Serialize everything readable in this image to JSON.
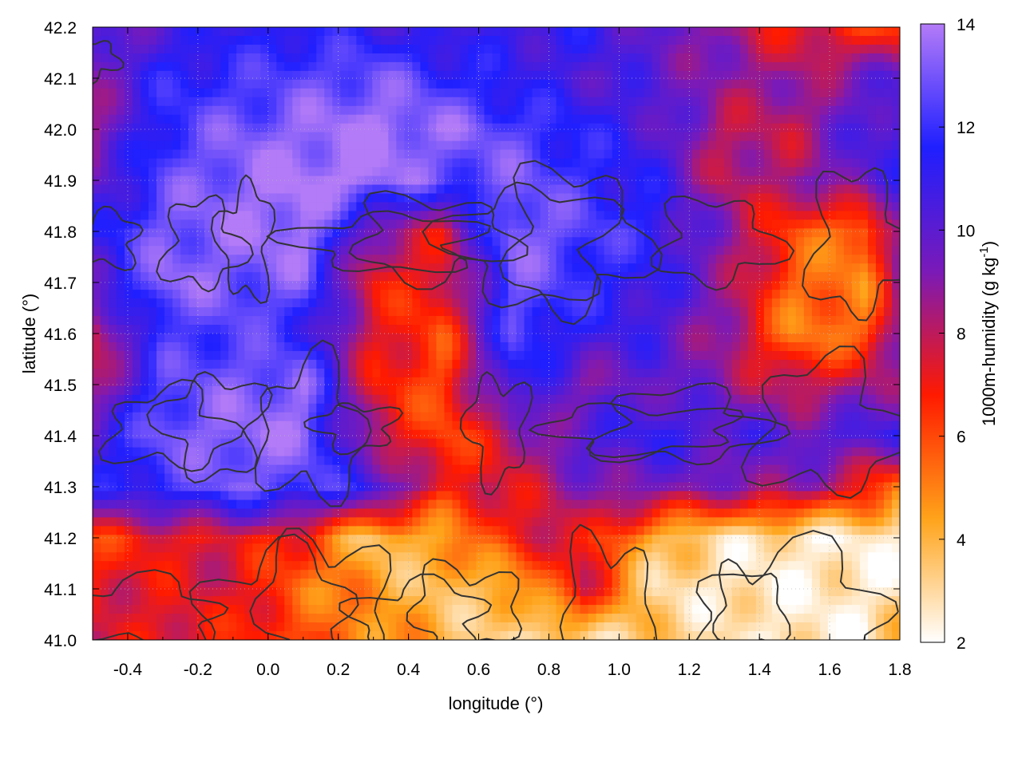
{
  "chart_data": {
    "type": "heatmap",
    "title": "",
    "xlabel": "longitude (°)",
    "ylabel": "latitude (°)",
    "xlim": [
      -0.5,
      1.8
    ],
    "ylim": [
      41.0,
      42.2
    ],
    "x_ticks": [
      -0.4,
      -0.2,
      0.0,
      0.2,
      0.4,
      0.6,
      0.8,
      1.0,
      1.2,
      1.4,
      1.6,
      1.8
    ],
    "x_tick_labels": [
      "-0.4",
      "-0.2",
      "0.0",
      "0.2",
      "0.4",
      "0.6",
      "0.8",
      "1.0",
      "1.2",
      "1.4",
      "1.6",
      "1.8"
    ],
    "y_ticks": [
      41.0,
      41.1,
      41.2,
      41.3,
      41.4,
      41.5,
      41.6,
      41.7,
      41.8,
      41.9,
      42.0,
      42.1,
      42.2
    ],
    "y_tick_labels": [
      "41.0",
      "41.1",
      "41.2",
      "41.3",
      "41.4",
      "41.5",
      "41.6",
      "41.7",
      "41.8",
      "41.9",
      "42.0",
      "42.1",
      "42.2"
    ],
    "grid": true,
    "colorbar": {
      "label": "1000m-humidity (g kg",
      "label_exponent": "-1",
      "label_suffix": ")",
      "range": [
        2,
        14
      ],
      "ticks": [
        2,
        4,
        6,
        8,
        10,
        12,
        14
      ],
      "tick_labels": [
        "2",
        "4",
        "6",
        "8",
        "10",
        "12",
        "14"
      ],
      "colormap": [
        "#ffffff",
        "#ffa31a",
        "#ff1a00",
        "#7a1ab8",
        "#1f1fff",
        "#b37bf7"
      ]
    },
    "field_grid": {
      "x": [
        -0.5,
        -0.3,
        -0.1,
        0.1,
        0.3,
        0.5,
        0.7,
        0.9,
        1.1,
        1.3,
        1.5,
        1.7,
        1.8
      ],
      "y": [
        42.2,
        42.1,
        42.0,
        41.9,
        41.8,
        41.7,
        41.6,
        41.5,
        41.4,
        41.3,
        41.2,
        41.1,
        41.0
      ],
      "values": [
        [
          9.5,
          10.5,
          11.0,
          11.5,
          11.0,
          10.5,
          11.0,
          11.0,
          10.0,
          8.5,
          7.0,
          6.5,
          6.0
        ],
        [
          9.0,
          11.5,
          12.0,
          12.5,
          13.0,
          12.0,
          11.0,
          10.5,
          10.0,
          9.0,
          8.5,
          9.5,
          10.0
        ],
        [
          8.5,
          12.0,
          13.0,
          13.5,
          14.0,
          13.5,
          12.5,
          11.5,
          10.5,
          8.0,
          8.0,
          10.5,
          11.0
        ],
        [
          9.5,
          12.5,
          13.5,
          14.0,
          14.0,
          12.5,
          13.0,
          12.0,
          11.0,
          8.0,
          8.5,
          10.0,
          10.5
        ],
        [
          11.0,
          13.0,
          13.5,
          14.0,
          9.0,
          7.5,
          13.5,
          12.5,
          11.5,
          9.0,
          6.0,
          5.0,
          9.5
        ],
        [
          10.0,
          13.5,
          13.0,
          13.0,
          7.0,
          7.0,
          13.0,
          12.0,
          11.0,
          9.0,
          5.5,
          5.0,
          9.0
        ],
        [
          7.5,
          12.0,
          12.5,
          11.5,
          7.5,
          6.0,
          12.5,
          11.0,
          10.5,
          8.5,
          5.0,
          5.5,
          8.5
        ],
        [
          8.0,
          12.5,
          13.0,
          13.5,
          7.0,
          6.0,
          11.5,
          9.0,
          10.0,
          9.0,
          7.5,
          8.5,
          9.0
        ],
        [
          10.5,
          13.0,
          13.5,
          13.5,
          8.0,
          6.0,
          8.0,
          10.5,
          11.0,
          10.5,
          10.0,
          10.5,
          11.0
        ],
        [
          11.0,
          12.0,
          13.0,
          12.5,
          11.0,
          7.0,
          7.5,
          9.0,
          9.5,
          9.0,
          9.0,
          7.0,
          5.0
        ],
        [
          6.5,
          7.0,
          7.5,
          6.5,
          3.5,
          4.5,
          7.0,
          7.5,
          4.0,
          3.0,
          2.5,
          2.5,
          2.5
        ],
        [
          7.0,
          7.5,
          7.5,
          5.5,
          4.5,
          3.5,
          4.0,
          7.5,
          3.0,
          2.5,
          2.5,
          2.5,
          2.5
        ],
        [
          8.0,
          7.0,
          7.0,
          6.0,
          5.0,
          4.0,
          3.0,
          3.0,
          3.5,
          3.0,
          2.5,
          2.5,
          4.0
        ]
      ]
    }
  }
}
